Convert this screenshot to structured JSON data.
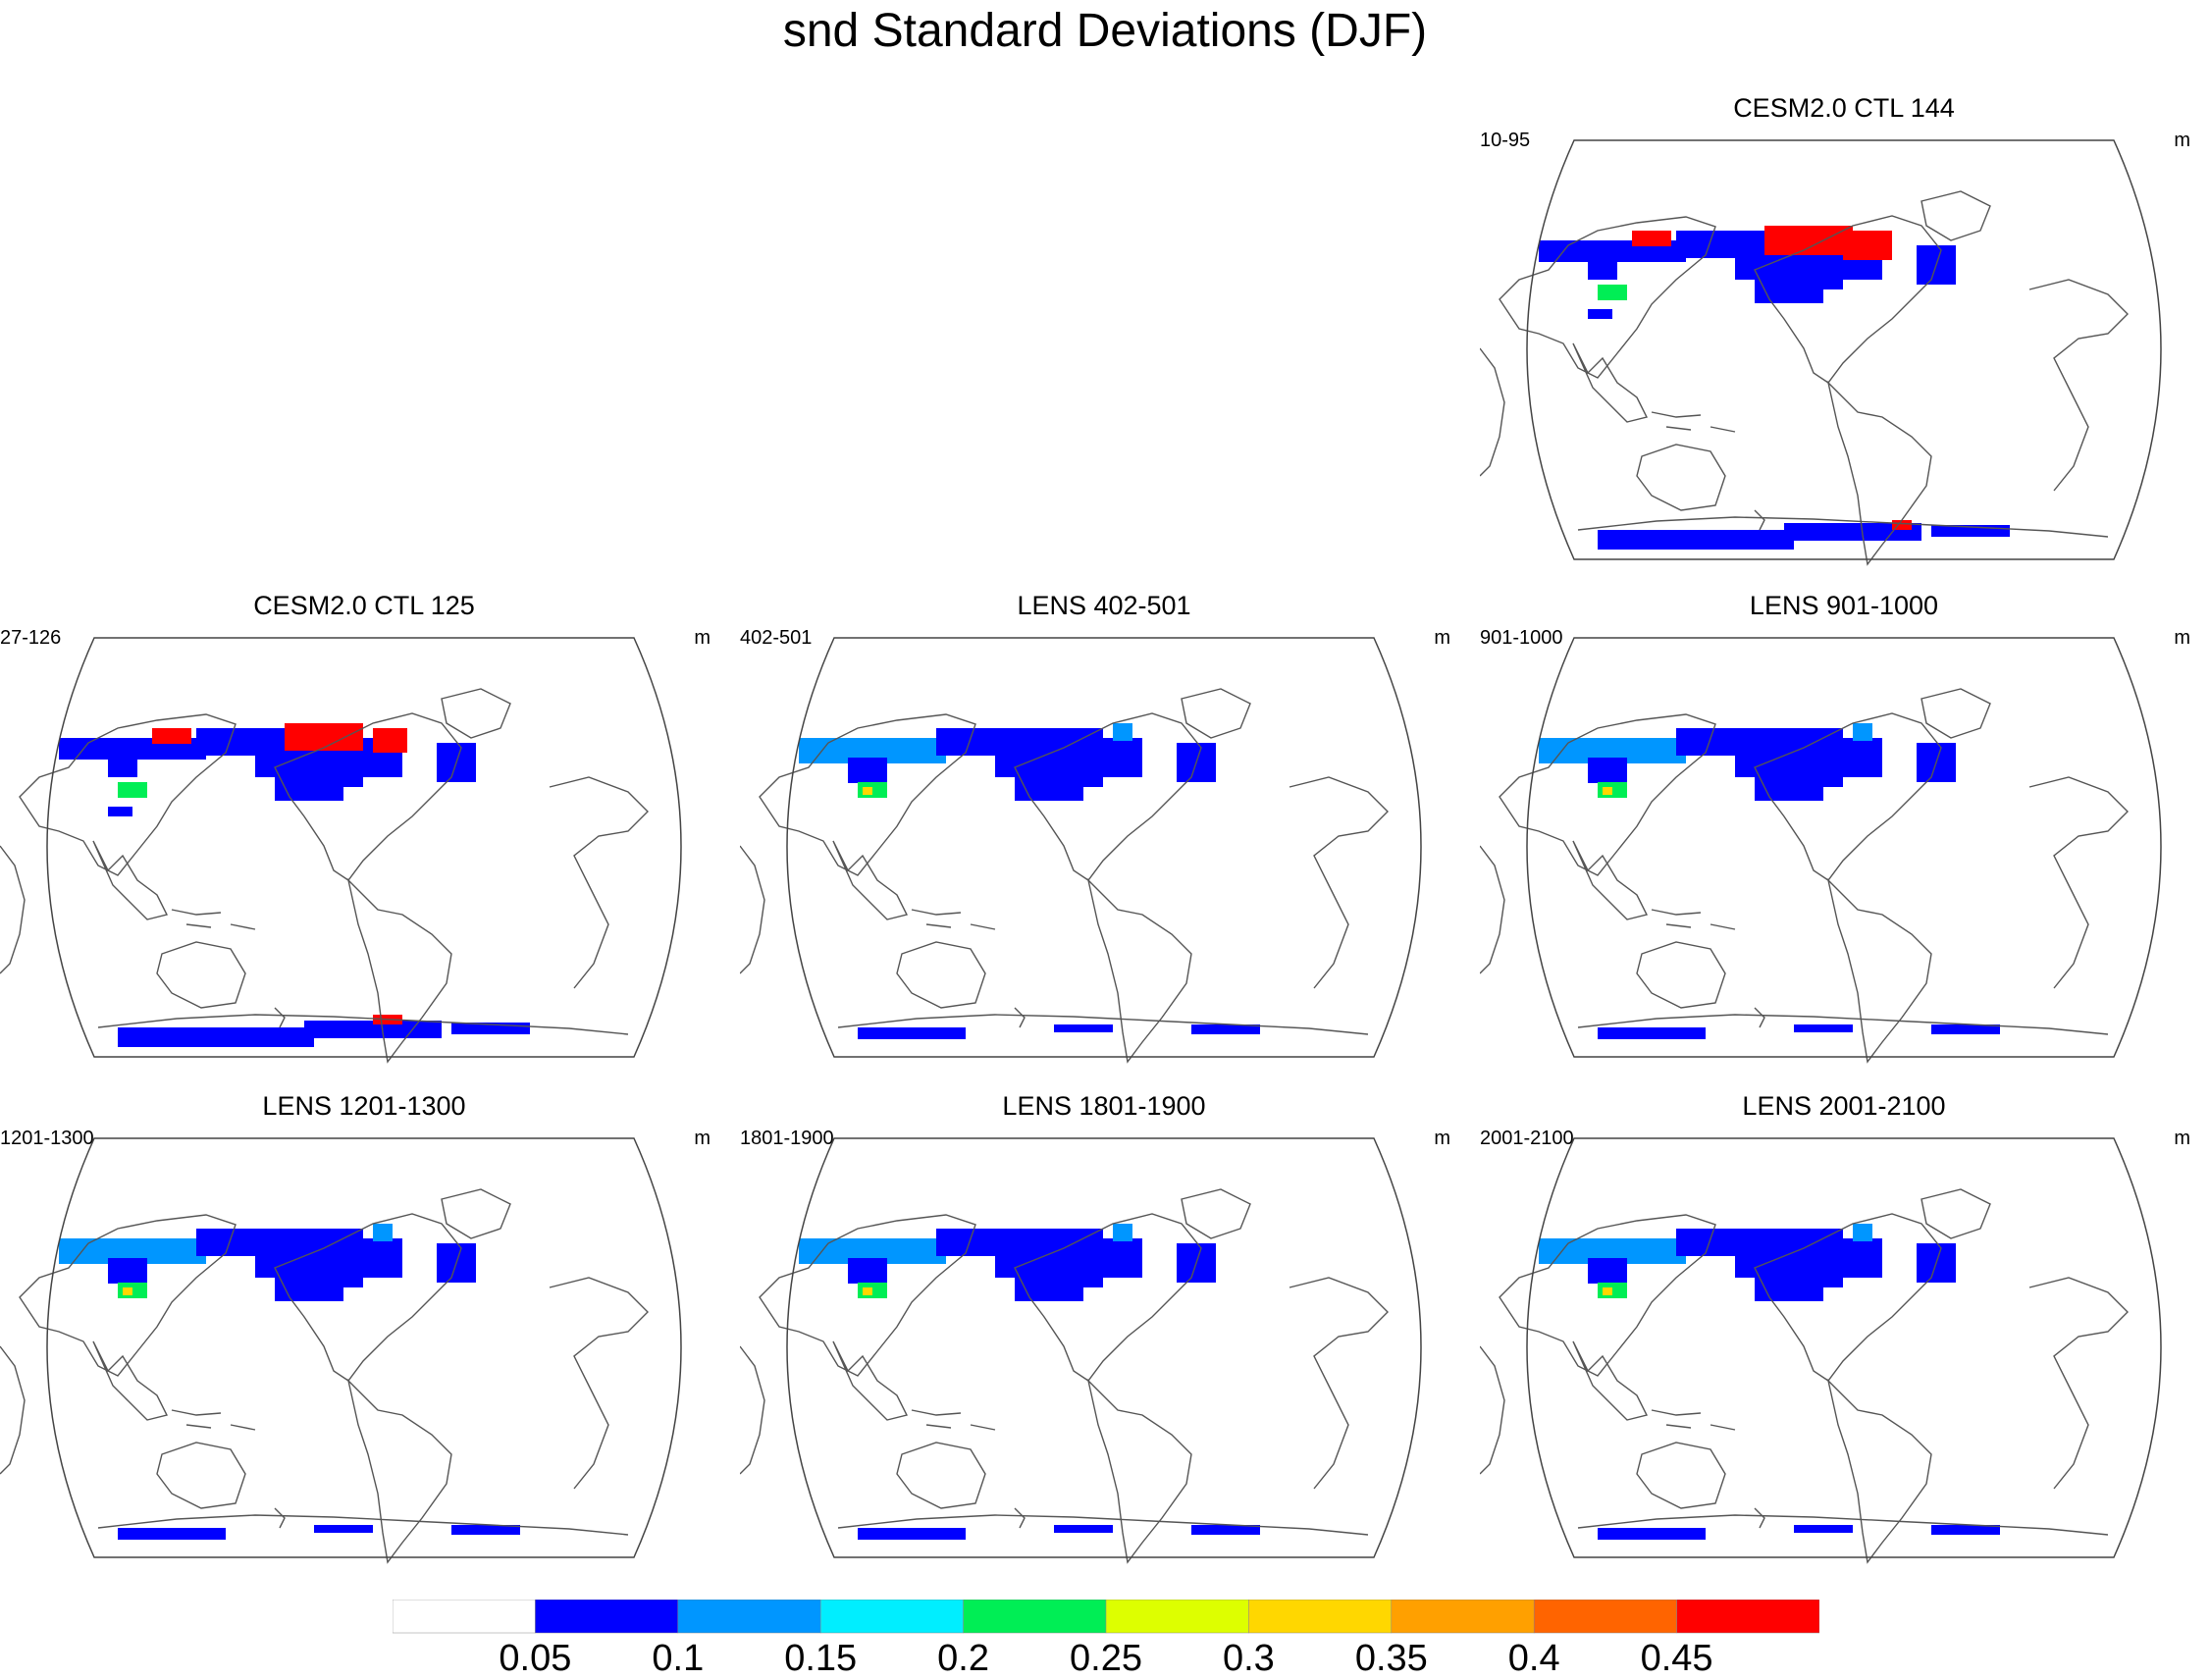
{
  "title": "snd Standard Deviations (DJF)",
  "panels": [
    {
      "title": "CESM2.0 CTL 144",
      "left_label": "10-95",
      "right_label": "m",
      "intensity": "very-high"
    },
    {
      "title": "CESM2.0 CTL 125",
      "left_label": "27-126",
      "right_label": "m",
      "intensity": "high"
    },
    {
      "title": "LENS 402-501",
      "left_label": "402-501",
      "right_label": "m",
      "intensity": "low"
    },
    {
      "title": "LENS 901-1000",
      "left_label": "901-1000",
      "right_label": "m",
      "intensity": "low"
    },
    {
      "title": "LENS 1201-1300",
      "left_label": "1201-1300",
      "right_label": "m",
      "intensity": "low"
    },
    {
      "title": "LENS 1801-1900",
      "left_label": "1801-1900",
      "right_label": "m",
      "intensity": "low"
    },
    {
      "title": "LENS 2001-2100",
      "left_label": "2001-2100",
      "right_label": "m",
      "intensity": "low"
    }
  ],
  "colorbar": {
    "colors": [
      "#ffffff",
      "#0000ff",
      "#0096ff",
      "#00eeff",
      "#00ee55",
      "#ddff00",
      "#ffd700",
      "#ffa000",
      "#ff6400",
      "#ff0000"
    ],
    "labels": [
      "0.05",
      "0.1",
      "0.15",
      "0.2",
      "0.25",
      "0.3",
      "0.35",
      "0.4",
      "0.45"
    ]
  },
  "map_colors": {
    "coast": "#555555",
    "snow_low": "#0000ff",
    "snow_mid": "#0096ff",
    "snow_edge": "#00ee55",
    "snow_high": "#ff0000",
    "snow_yellow": "#ffd700"
  }
}
